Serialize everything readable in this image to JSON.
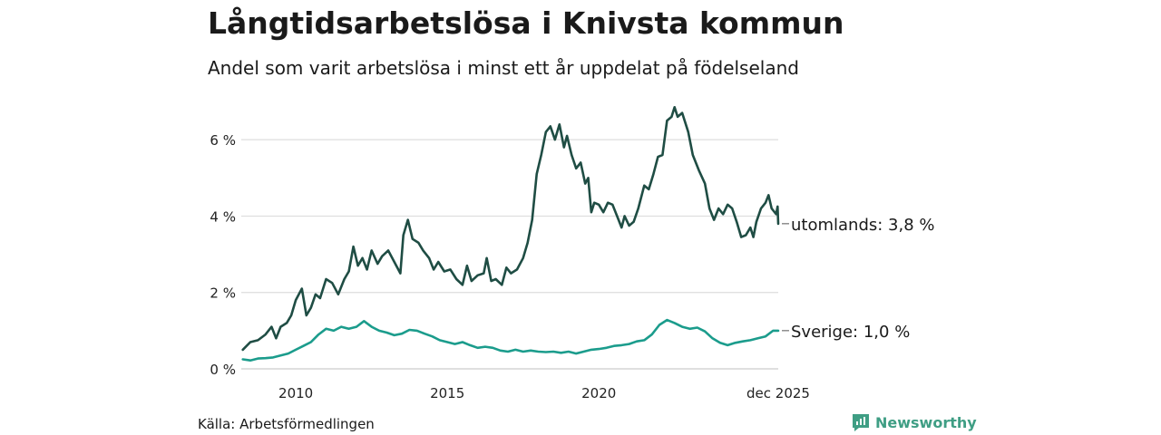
{
  "title": "Långtidsarbetslösa i Knivsta kommun",
  "subtitle": "Andel som varit arbetslösa i minst ett år uppdelat på födelseland",
  "source": "Källa: Arbetsförmedlingen",
  "brand": {
    "name": "Newsworthy",
    "icon": "newsworthy-logo-icon"
  },
  "colors": {
    "utomlands": "#1f4d44",
    "sverige": "#1b9c8c",
    "grid": "#dddddd",
    "brand": "#3f9e84"
  },
  "chart_data": {
    "type": "line",
    "title": "Långtidsarbetslösa i Knivsta kommun",
    "xlabel": "",
    "ylabel": "",
    "xlim": [
      2008.2,
      2025.92
    ],
    "ylim": [
      0,
      7
    ],
    "yticks": [
      0,
      2,
      4,
      6
    ],
    "ytick_labels": [
      "0 %",
      "2 %",
      "4 %",
      "6 %"
    ],
    "xticks": [
      2010,
      2015,
      2020,
      2025.92
    ],
    "xtick_labels": [
      "2010",
      "2015",
      "2020",
      "dec 2025"
    ],
    "grid": true,
    "series": [
      {
        "name": "utomlands",
        "end_label": "utomlands: 3,8 %",
        "points": [
          [
            2008.25,
            0.5
          ],
          [
            2008.5,
            0.7
          ],
          [
            2008.75,
            0.75
          ],
          [
            2009.0,
            0.9
          ],
          [
            2009.2,
            1.1
          ],
          [
            2009.35,
            0.8
          ],
          [
            2009.5,
            1.1
          ],
          [
            2009.7,
            1.2
          ],
          [
            2009.85,
            1.4
          ],
          [
            2010.0,
            1.8
          ],
          [
            2010.2,
            2.1
          ],
          [
            2010.35,
            1.4
          ],
          [
            2010.5,
            1.6
          ],
          [
            2010.65,
            1.95
          ],
          [
            2010.8,
            1.85
          ],
          [
            2011.0,
            2.35
          ],
          [
            2011.2,
            2.25
          ],
          [
            2011.4,
            1.95
          ],
          [
            2011.6,
            2.35
          ],
          [
            2011.75,
            2.55
          ],
          [
            2011.9,
            3.2
          ],
          [
            2012.05,
            2.7
          ],
          [
            2012.2,
            2.9
          ],
          [
            2012.35,
            2.6
          ],
          [
            2012.5,
            3.1
          ],
          [
            2012.7,
            2.75
          ],
          [
            2012.85,
            2.95
          ],
          [
            2013.05,
            3.1
          ],
          [
            2013.25,
            2.8
          ],
          [
            2013.45,
            2.5
          ],
          [
            2013.55,
            3.5
          ],
          [
            2013.7,
            3.9
          ],
          [
            2013.85,
            3.4
          ],
          [
            2014.05,
            3.3
          ],
          [
            2014.2,
            3.1
          ],
          [
            2014.4,
            2.9
          ],
          [
            2014.55,
            2.6
          ],
          [
            2014.7,
            2.8
          ],
          [
            2014.9,
            2.55
          ],
          [
            2015.1,
            2.6
          ],
          [
            2015.3,
            2.35
          ],
          [
            2015.5,
            2.2
          ],
          [
            2015.65,
            2.7
          ],
          [
            2015.8,
            2.3
          ],
          [
            2016.0,
            2.45
          ],
          [
            2016.2,
            2.5
          ],
          [
            2016.3,
            2.9
          ],
          [
            2016.45,
            2.3
          ],
          [
            2016.6,
            2.35
          ],
          [
            2016.8,
            2.2
          ],
          [
            2016.95,
            2.65
          ],
          [
            2017.1,
            2.5
          ],
          [
            2017.3,
            2.6
          ],
          [
            2017.5,
            2.9
          ],
          [
            2017.65,
            3.3
          ],
          [
            2017.8,
            3.9
          ],
          [
            2017.95,
            5.1
          ],
          [
            2018.1,
            5.6
          ],
          [
            2018.25,
            6.2
          ],
          [
            2018.4,
            6.35
          ],
          [
            2018.55,
            6.0
          ],
          [
            2018.7,
            6.4
          ],
          [
            2018.85,
            5.8
          ],
          [
            2018.95,
            6.1
          ],
          [
            2019.1,
            5.6
          ],
          [
            2019.25,
            5.25
          ],
          [
            2019.4,
            5.4
          ],
          [
            2019.55,
            4.85
          ],
          [
            2019.65,
            5.0
          ],
          [
            2019.75,
            4.1
          ],
          [
            2019.85,
            4.35
          ],
          [
            2020.0,
            4.3
          ],
          [
            2020.15,
            4.1
          ],
          [
            2020.3,
            4.35
          ],
          [
            2020.45,
            4.3
          ],
          [
            2020.6,
            4.0
          ],
          [
            2020.75,
            3.7
          ],
          [
            2020.85,
            4.0
          ],
          [
            2021.0,
            3.75
          ],
          [
            2021.15,
            3.85
          ],
          [
            2021.3,
            4.2
          ],
          [
            2021.5,
            4.8
          ],
          [
            2021.65,
            4.7
          ],
          [
            2021.8,
            5.1
          ],
          [
            2021.95,
            5.55
          ],
          [
            2022.1,
            5.6
          ],
          [
            2022.25,
            6.5
          ],
          [
            2022.4,
            6.6
          ],
          [
            2022.5,
            6.85
          ],
          [
            2022.6,
            6.6
          ],
          [
            2022.75,
            6.7
          ],
          [
            2022.95,
            6.2
          ],
          [
            2023.1,
            5.6
          ],
          [
            2023.3,
            5.2
          ],
          [
            2023.5,
            4.85
          ],
          [
            2023.65,
            4.2
          ],
          [
            2023.8,
            3.9
          ],
          [
            2023.95,
            4.2
          ],
          [
            2024.1,
            4.05
          ],
          [
            2024.25,
            4.3
          ],
          [
            2024.4,
            4.2
          ],
          [
            2024.55,
            3.85
          ],
          [
            2024.7,
            3.45
          ],
          [
            2024.85,
            3.5
          ],
          [
            2025.0,
            3.7
          ],
          [
            2025.1,
            3.45
          ],
          [
            2025.2,
            3.85
          ],
          [
            2025.35,
            4.2
          ],
          [
            2025.5,
            4.35
          ],
          [
            2025.6,
            4.55
          ],
          [
            2025.7,
            4.2
          ],
          [
            2025.85,
            4.05
          ],
          [
            2025.9,
            4.25
          ],
          [
            2025.92,
            3.8
          ]
        ]
      },
      {
        "name": "Sverige",
        "end_label": "Sverige: 1,0 %",
        "points": [
          [
            2008.25,
            0.25
          ],
          [
            2008.5,
            0.22
          ],
          [
            2008.75,
            0.27
          ],
          [
            2009.0,
            0.28
          ],
          [
            2009.25,
            0.3
          ],
          [
            2009.5,
            0.35
          ],
          [
            2009.75,
            0.4
          ],
          [
            2010.0,
            0.5
          ],
          [
            2010.25,
            0.6
          ],
          [
            2010.5,
            0.7
          ],
          [
            2010.75,
            0.9
          ],
          [
            2011.0,
            1.05
          ],
          [
            2011.25,
            1.0
          ],
          [
            2011.5,
            1.1
          ],
          [
            2011.75,
            1.05
          ],
          [
            2012.0,
            1.1
          ],
          [
            2012.25,
            1.25
          ],
          [
            2012.5,
            1.1
          ],
          [
            2012.75,
            1.0
          ],
          [
            2013.0,
            0.95
          ],
          [
            2013.25,
            0.88
          ],
          [
            2013.5,
            0.92
          ],
          [
            2013.75,
            1.02
          ],
          [
            2014.0,
            1.0
          ],
          [
            2014.25,
            0.92
          ],
          [
            2014.5,
            0.85
          ],
          [
            2014.75,
            0.75
          ],
          [
            2015.0,
            0.7
          ],
          [
            2015.25,
            0.65
          ],
          [
            2015.5,
            0.7
          ],
          [
            2015.75,
            0.62
          ],
          [
            2016.0,
            0.55
          ],
          [
            2016.25,
            0.58
          ],
          [
            2016.5,
            0.55
          ],
          [
            2016.75,
            0.48
          ],
          [
            2017.0,
            0.45
          ],
          [
            2017.25,
            0.5
          ],
          [
            2017.5,
            0.45
          ],
          [
            2017.75,
            0.48
          ],
          [
            2018.0,
            0.45
          ],
          [
            2018.25,
            0.44
          ],
          [
            2018.5,
            0.45
          ],
          [
            2018.75,
            0.42
          ],
          [
            2019.0,
            0.45
          ],
          [
            2019.25,
            0.4
          ],
          [
            2019.5,
            0.45
          ],
          [
            2019.75,
            0.5
          ],
          [
            2020.0,
            0.52
          ],
          [
            2020.25,
            0.55
          ],
          [
            2020.5,
            0.6
          ],
          [
            2020.75,
            0.62
          ],
          [
            2021.0,
            0.65
          ],
          [
            2021.25,
            0.72
          ],
          [
            2021.5,
            0.75
          ],
          [
            2021.75,
            0.9
          ],
          [
            2022.0,
            1.15
          ],
          [
            2022.25,
            1.28
          ],
          [
            2022.5,
            1.2
          ],
          [
            2022.75,
            1.1
          ],
          [
            2023.0,
            1.05
          ],
          [
            2023.25,
            1.08
          ],
          [
            2023.5,
            0.98
          ],
          [
            2023.75,
            0.8
          ],
          [
            2024.0,
            0.68
          ],
          [
            2024.25,
            0.62
          ],
          [
            2024.5,
            0.68
          ],
          [
            2024.75,
            0.72
          ],
          [
            2025.0,
            0.75
          ],
          [
            2025.25,
            0.8
          ],
          [
            2025.5,
            0.85
          ],
          [
            2025.75,
            1.0
          ],
          [
            2025.92,
            1.0
          ]
        ]
      }
    ]
  }
}
